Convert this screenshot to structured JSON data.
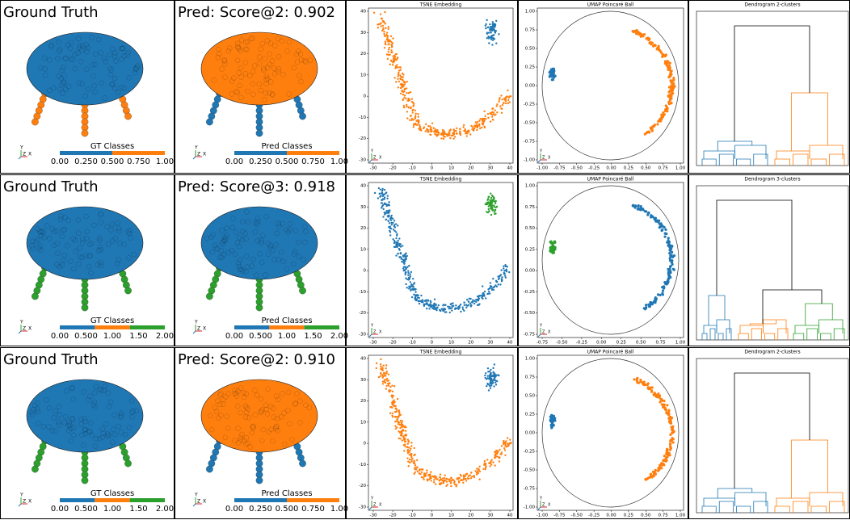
{
  "triad": {
    "y": "Y",
    "z": "Z",
    "x": "X"
  },
  "rows": [
    {
      "gt": {
        "title": "Ground Truth",
        "top": "#1f77b4",
        "legs": "#ff7f0e",
        "colorbar": {
          "label": "GT Classes",
          "ticks": [
            "0.00",
            "0.250",
            "0.500",
            "0.750",
            "1.00"
          ],
          "colors": [
            "#1f77b4",
            "#ff7f0e"
          ]
        }
      },
      "pred": {
        "title": "Pred: Score@2: 0.902",
        "top": "#ff7f0e",
        "legs": "#1f77b4",
        "colorbar": {
          "label": "Pred Classes",
          "ticks": [
            "0.00",
            "0.250",
            "0.500",
            "0.750",
            "1.00"
          ],
          "colors": [
            "#1f77b4",
            "#ff7f0e"
          ]
        }
      },
      "tsne": {
        "title": "TSNE Embedding",
        "arc": "#ff7f0e",
        "cluster": "#1f77b4",
        "xticks": [
          "-30",
          "-20",
          "-10",
          "0",
          "10",
          "20",
          "30",
          "40"
        ],
        "yticks": [
          "40",
          "30",
          "20",
          "10",
          "0",
          "-10",
          "-20",
          "-30"
        ]
      },
      "umap": {
        "title": "UMAP Poincaré Ball",
        "left": "#1f77b4",
        "right": "#ff7f0e",
        "xticks": [
          "-1.00",
          "-0.75",
          "-0.50",
          "-0.25",
          "0.00",
          "0.25",
          "0.50",
          "0.75",
          "1.00"
        ],
        "yticks": [
          "1.00",
          "0.75",
          "0.50",
          "0.25",
          "0.00",
          "-0.25",
          "-0.50",
          "-0.75",
          "-1.00"
        ]
      },
      "dendrogram": {
        "title": "Dendrogram 2-clusters",
        "colors": [
          "#1f77b4",
          "#ff7f0e"
        ]
      }
    },
    {
      "gt": {
        "title": "Ground Truth",
        "top": "#1f77b4",
        "legs": "#2ca02c",
        "colorbar": {
          "label": "GT Classes",
          "ticks": [
            "0.00",
            "0.500",
            "1.00",
            "1.50",
            "2.00"
          ],
          "colors": [
            "#1f77b4",
            "#ff7f0e",
            "#2ca02c"
          ]
        }
      },
      "pred": {
        "title": "Pred: Score@3: 0.918",
        "top": "#1f77b4",
        "legs": "#2ca02c",
        "colorbar": {
          "label": "Pred Classes",
          "ticks": [
            "0.00",
            "0.500",
            "1.00",
            "1.50",
            "2.00"
          ],
          "colors": [
            "#1f77b4",
            "#ff7f0e",
            "#2ca02c"
          ]
        }
      },
      "tsne": {
        "title": "TSNE Embedding",
        "arc": "#1f77b4",
        "cluster": "#2ca02c",
        "xticks": [
          "-30",
          "-20",
          "-10",
          "0",
          "10",
          "20",
          "30",
          "40"
        ],
        "yticks": [
          "40",
          "30",
          "20",
          "10",
          "0",
          "-10",
          "-20",
          "-30"
        ]
      },
      "umap": {
        "title": "UMAP Poincaré Ball",
        "left": "#2ca02c",
        "right": "#1f77b4",
        "xticks": [
          "-0.75",
          "-0.50",
          "-0.25",
          "0.00",
          "0.25",
          "0.50",
          "0.75",
          "1.00"
        ],
        "yticks": [
          "1.00",
          "0.75",
          "0.50",
          "0.25",
          "0.00",
          "-0.25",
          "-0.50",
          "-0.75"
        ]
      },
      "dendrogram": {
        "title": "Dendrogram 3-clusters",
        "colors": [
          "#1f77b4",
          "#ff7f0e",
          "#2ca02c"
        ]
      }
    },
    {
      "gt": {
        "title": "Ground Truth",
        "top": "#1f77b4",
        "legs": "#2ca02c",
        "colorbar": {
          "label": "GT Classes",
          "ticks": [
            "0.00",
            "0.500",
            "1.00",
            "1.50",
            "2.00"
          ],
          "colors": [
            "#1f77b4",
            "#ff7f0e",
            "#2ca02c"
          ]
        }
      },
      "pred": {
        "title": "Pred: Score@2: 0.910",
        "top": "#ff7f0e",
        "legs": "#1f77b4",
        "colorbar": {
          "label": "Pred Classes",
          "ticks": [
            "0.00",
            "0.250",
            "0.500",
            "0.750",
            "1.00"
          ],
          "colors": [
            "#1f77b4",
            "#ff7f0e"
          ]
        }
      },
      "tsne": {
        "title": "TSNE Embedding",
        "arc": "#ff7f0e",
        "cluster": "#1f77b4",
        "xticks": [
          "-30",
          "-20",
          "-10",
          "0",
          "10",
          "20",
          "30",
          "40"
        ],
        "yticks": [
          "40",
          "30",
          "20",
          "10",
          "0",
          "-10",
          "-20",
          "-30"
        ]
      },
      "umap": {
        "title": "UMAP Poincaré Ball",
        "left": "#1f77b4",
        "right": "#ff7f0e",
        "xticks": [
          "-1.00",
          "-0.75",
          "-0.50",
          "-0.25",
          "0.00",
          "0.25",
          "0.50",
          "0.75",
          "1.00"
        ],
        "yticks": [
          "1.00",
          "0.75",
          "0.50",
          "0.25",
          "0.00",
          "-0.25",
          "-0.50",
          "-0.75",
          "-1.00"
        ]
      },
      "dendrogram": {
        "title": "Dendrogram 2-clusters",
        "colors": [
          "#1f77b4",
          "#ff7f0e"
        ]
      }
    }
  ]
}
